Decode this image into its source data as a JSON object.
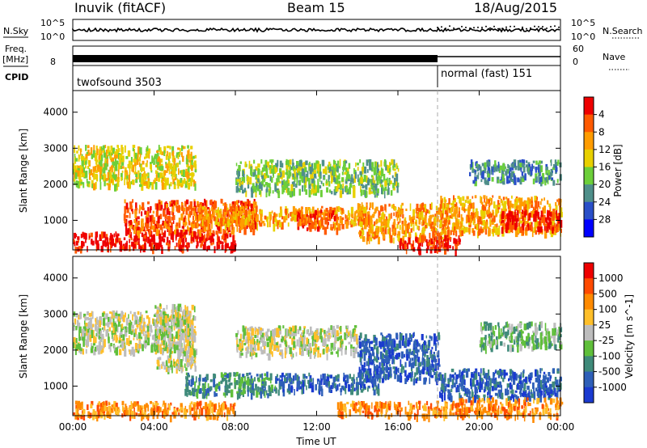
{
  "header": {
    "station": "Inuvik (fitACF)",
    "beam": "Beam 15",
    "date": "18/Aug/2015"
  },
  "status_panels": {
    "nsky_label": "N.Sky",
    "nsky_ticks": [
      "10^5",
      "10^0"
    ],
    "nsearch_label": "N.Search",
    "nsearch_ticks": [
      "10^5",
      "10^0"
    ],
    "freq_label": "Freq.",
    "freq_unit": "[MHz]",
    "freq_ticks": [
      "8"
    ],
    "nave_label": "Nave",
    "nave_ticks": [
      "60",
      "0"
    ],
    "cpid_label": "CPID",
    "cpid_segments": [
      {
        "name": "twofsound 3503",
        "start": "00:00",
        "end": "18:00"
      },
      {
        "name": "normal (fast) 151",
        "start": "18:00",
        "end": "24:00"
      }
    ]
  },
  "chart_data": [
    {
      "type": "heatmap",
      "panel": "power",
      "xlabel": "Time UT",
      "ylabel": "Slant Range [km]",
      "x_ticks": [
        "00:00",
        "04:00",
        "08:00",
        "12:00",
        "16:00",
        "20:00",
        "00:00"
      ],
      "x_range_hours": [
        0,
        24
      ],
      "y_ticks": [
        1000,
        2000,
        3000,
        4000
      ],
      "ylim": [
        180,
        4600
      ],
      "colorbar": {
        "label": "Power [dB]",
        "ticks": [
          "4",
          "8",
          "12",
          "16",
          "20",
          "24",
          "28"
        ],
        "colors": [
          "#0000ff",
          "#2a4fc8",
          "#4f8f8a",
          "#6ccf3a",
          "#e8d000",
          "#ff9c00",
          "#ff5a00",
          "#ee0000"
        ]
      },
      "echo_regions": [
        {
          "t0": 0.0,
          "t1": 8.0,
          "r0": 250,
          "r1": 700,
          "level": 7
        },
        {
          "t0": 2.5,
          "t1": 9.0,
          "r0": 700,
          "r1": 1600,
          "level": 6
        },
        {
          "t0": 0.0,
          "t1": 6.0,
          "r0": 2000,
          "r1": 3100,
          "level": 4
        },
        {
          "t0": 6.0,
          "t1": 14.5,
          "r0": 900,
          "r1": 1400,
          "level": 5
        },
        {
          "t0": 11.0,
          "t1": 13.0,
          "r0": 800,
          "r1": 1300,
          "level": 6
        },
        {
          "t0": 8.0,
          "t1": 16.0,
          "r0": 1800,
          "r1": 2700,
          "level": 3
        },
        {
          "t0": 14.0,
          "t1": 18.5,
          "r0": 500,
          "r1": 1500,
          "level": 5
        },
        {
          "t0": 16.0,
          "t1": 19.0,
          "r0": 200,
          "r1": 600,
          "level": 7
        },
        {
          "t0": 18.0,
          "t1": 24.0,
          "r0": 700,
          "r1": 1700,
          "level": 5
        },
        {
          "t0": 21.0,
          "t1": 24.0,
          "r0": 800,
          "r1": 1300,
          "level": 7
        },
        {
          "t0": 19.5,
          "t1": 24.0,
          "r0": 2100,
          "r1": 2700,
          "level": 2
        }
      ]
    },
    {
      "type": "heatmap",
      "panel": "velocity",
      "xlabel": "Time UT",
      "ylabel": "Slant Range [km]",
      "x_ticks": [
        "00:00",
        "04:00",
        "08:00",
        "12:00",
        "16:00",
        "20:00",
        "00:00"
      ],
      "x_range_hours": [
        0,
        24
      ],
      "y_ticks": [
        1000,
        2000,
        3000,
        4000
      ],
      "ylim": [
        180,
        4600
      ],
      "colorbar": {
        "label": "Velocity [m s^-1]",
        "ticks": [
          "1000",
          "500",
          "100",
          "25",
          "-25",
          "-100",
          "-500",
          "-1000"
        ],
        "colors": [
          "#1a3ad0",
          "#2e5fb8",
          "#3f8a7a",
          "#5fbf3a",
          "#bdbdbd",
          "#ffbf2a",
          "#ff8a00",
          "#ff4a00",
          "#ee0000"
        ]
      },
      "echo_regions": [
        {
          "t0": 0.0,
          "t1": 8.0,
          "r0": 200,
          "r1": 600,
          "level": 6
        },
        {
          "t0": 0.0,
          "t1": 6.0,
          "r0": 2000,
          "r1": 3100,
          "level": 4
        },
        {
          "t0": 4.0,
          "t1": 6.0,
          "r0": 1500,
          "r1": 3300,
          "level": 4
        },
        {
          "t0": 5.5,
          "t1": 10.0,
          "r0": 800,
          "r1": 1400,
          "level": 2
        },
        {
          "t0": 10.0,
          "t1": 15.0,
          "r0": 900,
          "r1": 1400,
          "level": 1
        },
        {
          "t0": 8.0,
          "t1": 14.0,
          "r0": 1900,
          "r1": 2700,
          "level": 4
        },
        {
          "t0": 14.0,
          "t1": 18.0,
          "r0": 1200,
          "r1": 2500,
          "level": 1
        },
        {
          "t0": 13.0,
          "t1": 19.0,
          "r0": 200,
          "r1": 600,
          "level": 6
        },
        {
          "t0": 18.0,
          "t1": 24.0,
          "r0": 700,
          "r1": 1500,
          "level": 1
        },
        {
          "t0": 19.0,
          "t1": 24.0,
          "r0": 200,
          "r1": 700,
          "level": 6
        },
        {
          "t0": 20.0,
          "t1": 24.0,
          "r0": 2100,
          "r1": 2800,
          "level": 3
        }
      ]
    }
  ]
}
